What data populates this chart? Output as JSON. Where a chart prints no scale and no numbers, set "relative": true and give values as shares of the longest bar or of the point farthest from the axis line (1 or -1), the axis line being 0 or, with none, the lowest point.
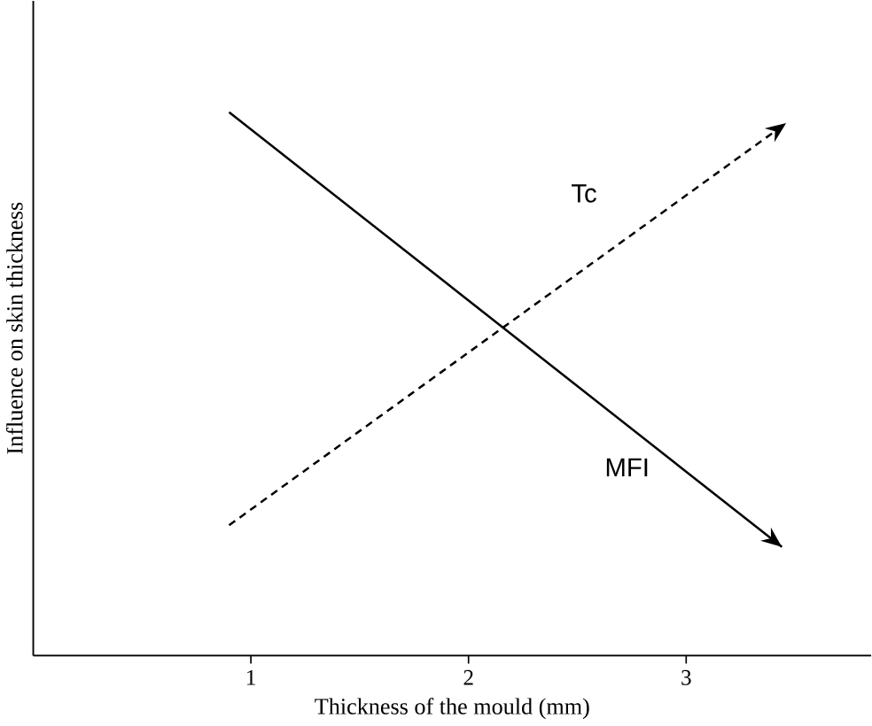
{
  "chart_data": {
    "type": "line",
    "relative": true,
    "xlabel": "Thickness of the mould (mm)",
    "ylabel": "Influence on skin thickness",
    "xlim": [
      0,
      3.85
    ],
    "xticks": [
      {
        "value": 1,
        "label": "1"
      },
      {
        "value": 2,
        "label": "2"
      },
      {
        "value": 3,
        "label": "3"
      }
    ],
    "tick_labels": "x",
    "legend": false,
    "grid": false,
    "marker": "none",
    "series": [
      {
        "name": "MFI",
        "color": "#000000",
        "line_style": "solid",
        "x": [
          0.9,
          3.44
        ],
        "values": [
          1,
          0.2
        ]
      },
      {
        "name": "Tc",
        "color": "#000000",
        "line_style": "dashed",
        "x": [
          0.9,
          3.46
        ],
        "values": [
          0.24,
          0.98
        ]
      }
    ]
  }
}
